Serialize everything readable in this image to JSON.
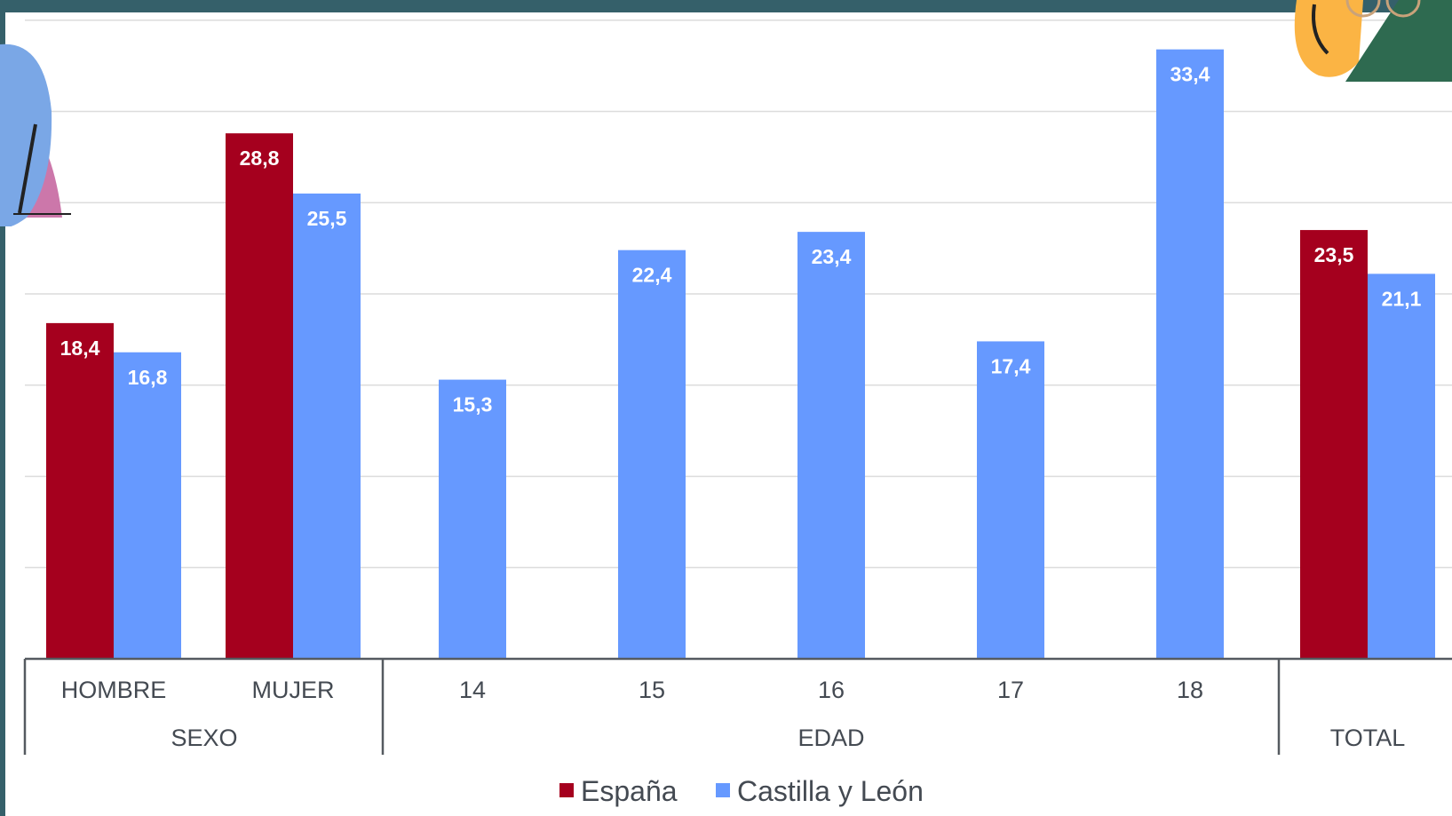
{
  "colors": {
    "espana": "#a5001e",
    "castilla": "#6699ff",
    "frame": "#35606a"
  },
  "chart_data": {
    "type": "bar",
    "title": "",
    "xlabel": "",
    "ylabel": "",
    "ylim": [
      0,
      35
    ],
    "grid": true,
    "legend_position": "bottom",
    "groups": [
      {
        "label": "SEXO",
        "categories": [
          "HOMBRE",
          "MUJER"
        ]
      },
      {
        "label": "EDAD",
        "categories": [
          "14",
          "15",
          "16",
          "17",
          "18"
        ]
      },
      {
        "label": "TOTAL",
        "categories": [
          ""
        ]
      }
    ],
    "categories": [
      "HOMBRE",
      "MUJER",
      "14",
      "15",
      "16",
      "17",
      "18",
      ""
    ],
    "series": [
      {
        "name": "España",
        "values": [
          18.4,
          28.8,
          null,
          null,
          null,
          null,
          null,
          23.5
        ],
        "labels": [
          "18,4",
          "28,8",
          null,
          null,
          null,
          null,
          null,
          "23,5"
        ]
      },
      {
        "name": "Castilla y León",
        "values": [
          16.8,
          25.5,
          15.3,
          22.4,
          23.4,
          17.4,
          33.4,
          21.1
        ],
        "labels": [
          "16,8",
          "25,5",
          "15,3",
          "22,4",
          "23,4",
          "17,4",
          "33,4",
          "21,1"
        ]
      }
    ]
  },
  "decorations": [
    "person-illustration-left",
    "person-illustration-top-right"
  ]
}
